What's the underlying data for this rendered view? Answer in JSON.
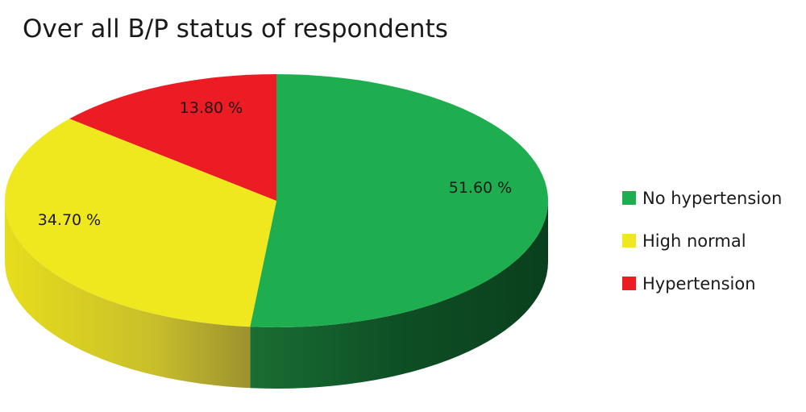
{
  "chart_data": {
    "type": "pie",
    "title": "Over all B/P status of respondents",
    "series": [
      {
        "name": "No hypertension",
        "value": 51.6,
        "label": "51.60 %",
        "color": "#1fae4f"
      },
      {
        "name": "High normal",
        "value": 34.7,
        "label": "34.70 %",
        "color": "#f0e81e"
      },
      {
        "name": "Hypertension",
        "value": 13.8,
        "label": "13.80 %",
        "color": "#ec1c24"
      }
    ],
    "legend_position": "right"
  }
}
